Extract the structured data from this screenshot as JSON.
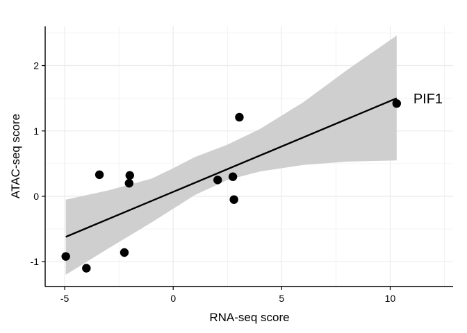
{
  "chart_data": {
    "type": "scatter",
    "xlabel": "RNA-seq score",
    "ylabel": "ATAC-seq score",
    "xlim": [
      -5.9,
      12.9
    ],
    "ylim": [
      -1.38,
      2.6
    ],
    "x_ticks": [
      -5,
      0,
      5,
      10
    ],
    "y_ticks": [
      -1,
      0,
      1,
      2
    ],
    "grid": true,
    "points": [
      {
        "x": -4.95,
        "y": -0.92
      },
      {
        "x": -4.0,
        "y": -1.1
      },
      {
        "x": -3.4,
        "y": 0.33
      },
      {
        "x": -2.25,
        "y": -0.86
      },
      {
        "x": -2.0,
        "y": 0.32
      },
      {
        "x": -2.03,
        "y": 0.2
      },
      {
        "x": 2.05,
        "y": 0.25
      },
      {
        "x": 2.75,
        "y": 0.3
      },
      {
        "x": 2.8,
        "y": -0.05
      },
      {
        "x": 3.05,
        "y": 1.21
      },
      {
        "x": 10.3,
        "y": 1.42
      }
    ],
    "fit_line": {
      "x": [
        -4.95,
        10.3
      ],
      "y": [
        -0.62,
        1.5
      ]
    },
    "confidence_band": {
      "x": [
        -4.95,
        -3.0,
        -1.0,
        0.0,
        1.0,
        2.5,
        4.0,
        6.0,
        8.0,
        10.3
      ],
      "upper": [
        -0.05,
        0.09,
        0.27,
        0.43,
        0.6,
        0.79,
        1.03,
        1.44,
        1.93,
        2.46
      ],
      "lower": [
        -1.2,
        -0.8,
        -0.4,
        -0.19,
        0.02,
        0.25,
        0.38,
        0.48,
        0.53,
        0.55
      ]
    },
    "annotations": [
      {
        "text": "PIF1",
        "x": 10.3,
        "y": 1.42
      }
    ],
    "colors": {
      "points": "#000000",
      "fit_line": "#000000",
      "band": "#cfcfcf",
      "grid": "#ebebeb",
      "axis": "#000000"
    }
  }
}
